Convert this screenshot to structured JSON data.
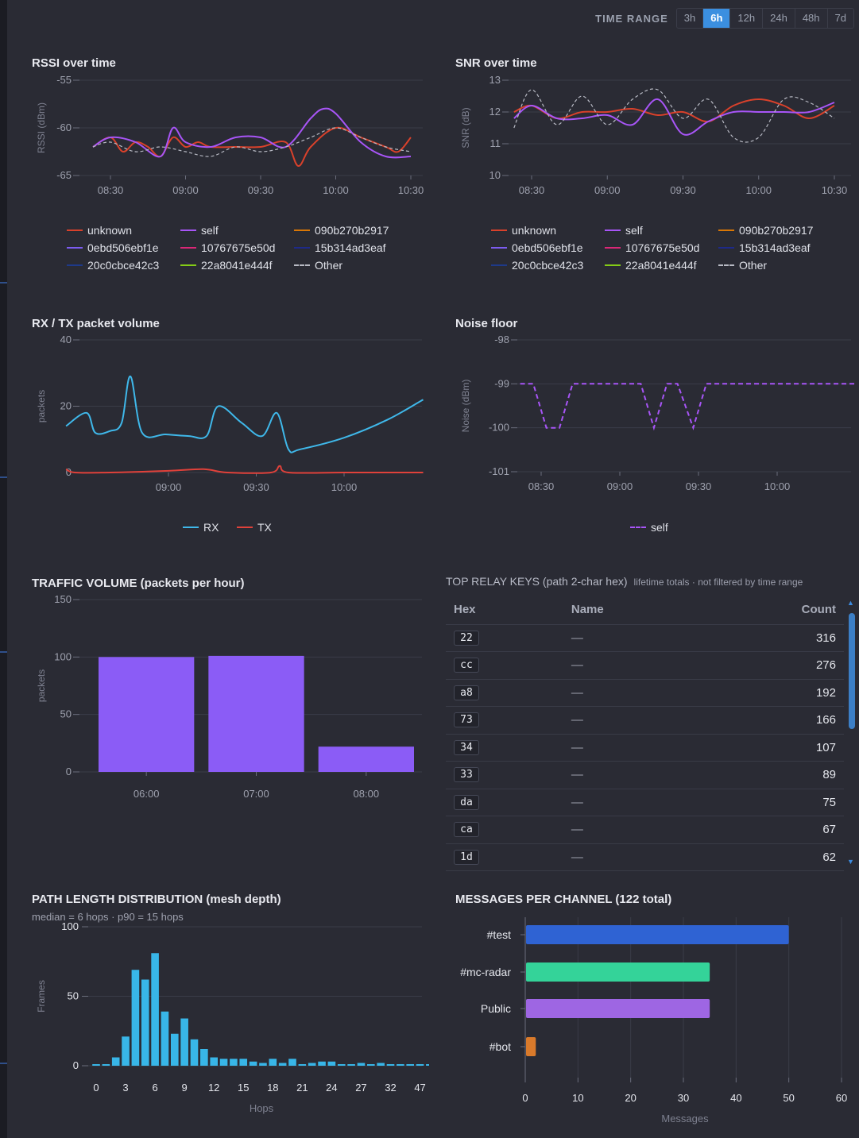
{
  "time_range": {
    "label": "TIME RANGE",
    "options": [
      "3h",
      "6h",
      "12h",
      "24h",
      "48h",
      "7d"
    ],
    "active": "6h",
    "accent": "#3b8fe0"
  },
  "rssi": {
    "title": "RSSI over time",
    "legend": [
      "unknown",
      "self",
      "090b270b2917",
      "0ebd506ebf1e",
      "10767675e50d",
      "15b314ad3eaf",
      "20c0cbce42c3",
      "22a8041e444f",
      "Other"
    ]
  },
  "snr": {
    "title": "SNR over time",
    "legend": [
      "unknown",
      "self",
      "090b270b2917",
      "0ebd506ebf1e",
      "10767675e50d",
      "15b314ad3eaf",
      "20c0cbce42c3",
      "22a8041e444f",
      "Other"
    ]
  },
  "rxtx": {
    "title": "RX / TX packet volume",
    "legend": [
      "RX",
      "TX"
    ]
  },
  "noise": {
    "title": "Noise floor",
    "legend": [
      "self"
    ]
  },
  "traffic": {
    "title": "TRAFFIC VOLUME (packets per hour)"
  },
  "relay": {
    "title": "TOP RELAY KEYS (path 2-char hex)",
    "note": "lifetime totals · not filtered by time range",
    "headers": {
      "hex": "Hex",
      "name": "Name",
      "count": "Count"
    },
    "rows": [
      {
        "hex": "22",
        "name": "—",
        "count": "316"
      },
      {
        "hex": "cc",
        "name": "—",
        "count": "276"
      },
      {
        "hex": "a8",
        "name": "—",
        "count": "192"
      },
      {
        "hex": "73",
        "name": "—",
        "count": "166"
      },
      {
        "hex": "34",
        "name": "—",
        "count": "107"
      },
      {
        "hex": "33",
        "name": "—",
        "count": "89"
      },
      {
        "hex": "da",
        "name": "—",
        "count": "75"
      },
      {
        "hex": "ca",
        "name": "—",
        "count": "67"
      },
      {
        "hex": "1d",
        "name": "—",
        "count": "62"
      }
    ]
  },
  "pathlen": {
    "title": "PATH LENGTH DISTRIBUTION (mesh depth)",
    "subtitle": "median = 6 hops · p90 = 15 hops"
  },
  "channels": {
    "title": "MESSAGES PER CHANNEL (122 total)"
  },
  "colors": {
    "unknown": "#d9412b",
    "self": "#a855f7",
    "n090b": "#d97706",
    "n0ebd": "#7c5cf0",
    "n1076": "#db2777",
    "n15b3": "#1e2a8a",
    "n20c0": "#1e3a8a",
    "n22a8": "#84cc16",
    "other": "#b8bac4",
    "rx": "#3fb8ea",
    "tx": "#e0413a",
    "bar_purple": "#8b5cf6",
    "hist": "#38b6e8"
  },
  "chart_data": [
    {
      "type": "line",
      "title": "RSSI over time",
      "ylabel": "RSSI (dBm)",
      "ylim": [
        -65,
        -55
      ],
      "yticks": [
        -55,
        -60,
        -65
      ],
      "xticks": [
        "08:30",
        "09:00",
        "09:30",
        "10:00",
        "10:30"
      ],
      "series": [
        {
          "name": "unknown",
          "x": [
            "08:23",
            "08:30",
            "08:35",
            "08:40",
            "08:45",
            "08:50",
            "08:55",
            "09:00",
            "09:05",
            "09:10",
            "09:20",
            "09:30",
            "09:40",
            "09:45",
            "09:50",
            "10:00",
            "10:10",
            "10:20",
            "10:25",
            "10:30"
          ],
          "y": [
            -62,
            -61,
            -62.5,
            -61.5,
            -62,
            -63,
            -61,
            -62,
            -61.5,
            -62,
            -62,
            -62,
            -61.5,
            -64,
            -62,
            -60,
            -61,
            -62,
            -62.5,
            -61
          ]
        },
        {
          "name": "self",
          "x": [
            "08:23",
            "08:30",
            "08:40",
            "08:50",
            "08:55",
            "09:00",
            "09:10",
            "09:20",
            "09:30",
            "09:40",
            "09:50",
            "09:55",
            "10:00",
            "10:10",
            "10:20",
            "10:30"
          ],
          "y": [
            -62,
            -61,
            -61.5,
            -63,
            -60,
            -61.5,
            -62,
            -61,
            -61,
            -62,
            -59,
            -58,
            -58.5,
            -61.5,
            -63,
            -63
          ]
        },
        {
          "name": "Other",
          "x": [
            "08:23",
            "08:30",
            "08:40",
            "08:50",
            "09:00",
            "09:10",
            "09:20",
            "09:30",
            "09:40",
            "09:50",
            "10:00",
            "10:10",
            "10:20",
            "10:30"
          ],
          "y": [
            -62,
            -61.5,
            -62.5,
            -62,
            -62.5,
            -63,
            -62,
            -62.5,
            -62,
            -61,
            -60,
            -61,
            -62,
            -62.5
          ]
        }
      ]
    },
    {
      "type": "line",
      "title": "SNR over time",
      "ylabel": "SNR (dB)",
      "ylim": [
        10,
        13
      ],
      "yticks": [
        13,
        12,
        11,
        10
      ],
      "xticks": [
        "08:30",
        "09:00",
        "09:30",
        "10:00",
        "10:30"
      ],
      "series": [
        {
          "name": "unknown",
          "x": [
            "08:23",
            "08:30",
            "08:40",
            "08:50",
            "09:00",
            "09:10",
            "09:20",
            "09:30",
            "09:40",
            "09:50",
            "10:00",
            "10:10",
            "10:20",
            "10:30"
          ],
          "y": [
            12,
            12.2,
            11.8,
            12,
            12,
            12.1,
            11.9,
            12,
            11.7,
            12.2,
            12.4,
            12.2,
            11.8,
            12.2
          ]
        },
        {
          "name": "self",
          "x": [
            "08:23",
            "08:30",
            "08:40",
            "08:50",
            "09:00",
            "09:10",
            "09:20",
            "09:30",
            "09:40",
            "09:50",
            "10:00",
            "10:10",
            "10:20",
            "10:30"
          ],
          "y": [
            11.8,
            12.2,
            11.8,
            11.8,
            11.9,
            11.6,
            12.4,
            11.3,
            11.7,
            12,
            12,
            12,
            12,
            12.3
          ]
        },
        {
          "name": "Other",
          "x": [
            "08:23",
            "08:30",
            "08:40",
            "08:50",
            "09:00",
            "09:10",
            "09:20",
            "09:30",
            "09:40",
            "09:50",
            "10:00",
            "10:10",
            "10:20",
            "10:30"
          ],
          "y": [
            11.5,
            12.7,
            11.6,
            12.5,
            11.6,
            12.4,
            12.7,
            11.8,
            12.4,
            11.2,
            11.2,
            12.4,
            12.3,
            11.8
          ]
        }
      ]
    },
    {
      "type": "line",
      "title": "RX / TX packet volume",
      "ylabel": "packets",
      "ylim": [
        0,
        40
      ],
      "yticks": [
        40,
        20,
        0
      ],
      "xticks": [
        "09:00",
        "09:30",
        "10:00"
      ],
      "series": [
        {
          "name": "RX",
          "x": [
            "08:25",
            "08:32",
            "08:35",
            "08:40",
            "08:44",
            "08:47",
            "08:51",
            "08:59",
            "09:07",
            "09:13",
            "09:17",
            "09:25",
            "09:32",
            "09:37",
            "09:41",
            "09:45",
            "10:00",
            "10:15",
            "10:27"
          ],
          "y": [
            14,
            18,
            12,
            12.5,
            15,
            29,
            12,
            11.5,
            11,
            11,
            20,
            15,
            11,
            18,
            7,
            7,
            10.5,
            16,
            22
          ]
        },
        {
          "name": "TX",
          "x": [
            "08:25",
            "08:28",
            "08:40",
            "09:00",
            "09:12",
            "09:20",
            "09:35",
            "09:38",
            "09:41",
            "10:00",
            "10:27"
          ],
          "y": [
            1,
            0,
            0,
            0.5,
            1,
            0,
            0,
            2,
            0,
            0,
            0
          ]
        }
      ]
    },
    {
      "type": "line",
      "title": "Noise floor",
      "ylabel": "Noise (dBm)",
      "ylim": [
        -101,
        -98
      ],
      "yticks": [
        -98,
        -99,
        -100,
        -101
      ],
      "xticks": [
        "08:30",
        "09:00",
        "09:30",
        "10:00"
      ],
      "series": [
        {
          "name": "self",
          "x": [
            "08:22",
            "08:27",
            "08:32",
            "08:37",
            "08:42",
            "09:08",
            "09:13",
            "09:18",
            "09:22",
            "09:28",
            "09:33",
            "10:30"
          ],
          "y": [
            -99,
            -99,
            -100,
            -100,
            -99,
            -99,
            -100,
            -99,
            -99,
            -100,
            -99,
            -99
          ]
        }
      ]
    },
    {
      "type": "bar",
      "title": "TRAFFIC VOLUME (packets per hour)",
      "ylabel": "packets",
      "ylim": [
        0,
        150
      ],
      "yticks": [
        150,
        100,
        50,
        0
      ],
      "categories": [
        "06:00",
        "07:00",
        "08:00"
      ],
      "values": [
        100,
        101,
        22
      ]
    },
    {
      "type": "bar",
      "title": "PATH LENGTH DISTRIBUTION (mesh depth)",
      "xlabel": "Hops",
      "ylabel": "Frames",
      "ylim": [
        0,
        100
      ],
      "yticks": [
        100,
        50,
        0
      ],
      "xticks": [
        0,
        3,
        6,
        9,
        12,
        15,
        18,
        21,
        24,
        27,
        32,
        47
      ],
      "categories": [
        "0",
        "1",
        "2",
        "3",
        "4",
        "5",
        "6",
        "7",
        "8",
        "9",
        "10",
        "11",
        "12",
        "13",
        "14",
        "15",
        "16",
        "17",
        "18",
        "19",
        "20",
        "21",
        "22",
        "23",
        "24",
        "25",
        "26",
        "27",
        "28",
        "29",
        "30",
        "31",
        "32",
        "33",
        "34",
        "35"
      ],
      "values": [
        0,
        0,
        6,
        21,
        69,
        62,
        81,
        39,
        23,
        34,
        19,
        12,
        6,
        5,
        5,
        5,
        3,
        2,
        5,
        2,
        5,
        1,
        2,
        3,
        3,
        1,
        1,
        2,
        1,
        2,
        1,
        1,
        1,
        1,
        1,
        1
      ]
    },
    {
      "type": "bar",
      "orientation": "horizontal",
      "title": "MESSAGES PER CHANNEL (122 total)",
      "xlabel": "Messages",
      "xlim": [
        0,
        60
      ],
      "xticks": [
        0,
        10,
        20,
        30,
        40,
        50,
        60
      ],
      "categories": [
        "#test",
        "#mc-radar",
        "Public",
        "#bot"
      ],
      "values": [
        50,
        35,
        35,
        2
      ],
      "colors": [
        "#2f63d3",
        "#34d399",
        "#9e66e3",
        "#d97a2b"
      ]
    }
  ]
}
